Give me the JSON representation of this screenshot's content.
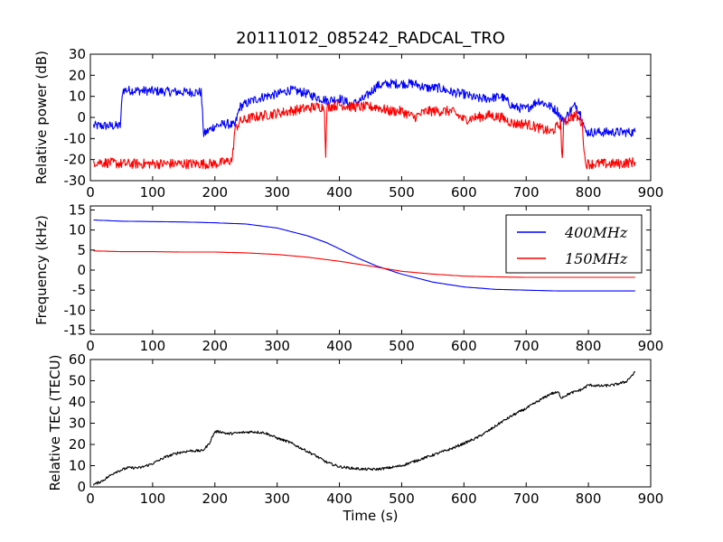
{
  "figure": {
    "title": "20111012_085242_RADCAL_TRO",
    "xlabel": "Time (s)"
  },
  "chart_data": [
    {
      "type": "line",
      "title": "20111012_085242_RADCAL_TRO",
      "xlabel": "",
      "ylabel": "Relative power (dB)",
      "xlim": [
        0,
        900
      ],
      "ylim": [
        -30,
        30
      ],
      "xticks": [
        0,
        100,
        200,
        300,
        400,
        500,
        600,
        700,
        800,
        900
      ],
      "yticks": [
        -30,
        -20,
        -10,
        0,
        10,
        20,
        30
      ],
      "grid": false,
      "legend": "none",
      "series": [
        {
          "color": "#0000ff",
          "noise": 2.2,
          "x": [
            5,
            48,
            52,
            100,
            150,
            178,
            182,
            200,
            220,
            232,
            240,
            260,
            280,
            300,
            320,
            340,
            360,
            380,
            400,
            420,
            440,
            460,
            480,
            500,
            520,
            540,
            560,
            580,
            600,
            620,
            640,
            660,
            680,
            700,
            720,
            740,
            750,
            760,
            770,
            780,
            790,
            795,
            800,
            820,
            850,
            875
          ],
          "y": [
            -4,
            -4,
            13,
            12.5,
            12,
            12,
            -8,
            -4,
            -3,
            -4,
            5,
            8,
            10,
            11,
            13,
            12,
            10,
            8,
            9,
            6,
            9,
            15,
            16,
            16,
            16,
            14,
            14,
            12,
            11,
            9,
            9,
            10,
            5,
            4,
            8,
            5,
            3,
            -2,
            3,
            6,
            0,
            -7,
            -7,
            -7,
            -7,
            -7
          ]
        },
        {
          "color": "#ff0000",
          "noise": 2.4,
          "x": [
            5,
            50,
            100,
            150,
            200,
            220,
            228,
            232,
            240,
            260,
            280,
            300,
            320,
            340,
            360,
            376,
            378,
            380,
            400,
            420,
            440,
            460,
            480,
            500,
            520,
            540,
            560,
            580,
            600,
            620,
            640,
            660,
            680,
            700,
            720,
            740,
            755,
            758,
            760,
            770,
            780,
            790,
            795,
            800,
            820,
            850,
            875
          ],
          "y": [
            -21,
            -22,
            -22,
            -22,
            -22,
            -21,
            -20,
            -6,
            -2,
            0,
            1,
            2,
            3,
            4,
            5,
            5,
            -20,
            5,
            6,
            5,
            5,
            5,
            3,
            3,
            0,
            3,
            3,
            3,
            -1,
            0,
            1,
            0,
            -3,
            -3,
            -5,
            -7,
            -3,
            -20,
            -3,
            0,
            1,
            -3,
            -22,
            -22,
            -22,
            -22,
            -21
          ]
        }
      ]
    },
    {
      "type": "line",
      "ylabel": "Frequency (kHz)",
      "xlim": [
        0,
        900
      ],
      "ylim": [
        -16,
        16
      ],
      "xticks": [
        0,
        100,
        200,
        300,
        400,
        500,
        600,
        700,
        800,
        900
      ],
      "yticks": [
        -15,
        -10,
        -5,
        0,
        5,
        10,
        15
      ],
      "grid": false,
      "legend": "top-right",
      "series": [
        {
          "name": "400MHz",
          "color": "#0000ff",
          "x": [
            5,
            50,
            100,
            150,
            200,
            250,
            300,
            350,
            380,
            400,
            430,
            460,
            500,
            550,
            600,
            650,
            700,
            750,
            800,
            850,
            875
          ],
          "y": [
            12.5,
            12.2,
            12.1,
            12.0,
            11.8,
            11.5,
            10.5,
            8.5,
            6.8,
            5.3,
            3,
            1,
            -1,
            -3,
            -4.2,
            -4.8,
            -5,
            -5.2,
            -5.2,
            -5.2,
            -5.2
          ]
        },
        {
          "name": "150MHz",
          "color": "#ff0000",
          "x": [
            5,
            50,
            100,
            150,
            200,
            250,
            300,
            350,
            400,
            450,
            500,
            550,
            600,
            650,
            700,
            750,
            800,
            850,
            875
          ],
          "y": [
            4.8,
            4.6,
            4.6,
            4.5,
            4.5,
            4.3,
            3.9,
            3.2,
            2.2,
            1.0,
            -0.3,
            -1.0,
            -1.5,
            -1.7,
            -1.8,
            -1.8,
            -1.8,
            -1.8,
            -1.8
          ]
        }
      ]
    },
    {
      "type": "line",
      "ylabel": "Relative TEC (TECU)",
      "xlabel": "Time (s)",
      "xlim": [
        0,
        900
      ],
      "ylim": [
        0,
        60
      ],
      "xticks": [
        0,
        100,
        200,
        300,
        400,
        500,
        600,
        700,
        800,
        900
      ],
      "yticks": [
        0,
        10,
        20,
        30,
        40,
        50,
        60
      ],
      "grid": false,
      "legend": "none",
      "series": [
        {
          "color": "#000000",
          "noise": 0.6,
          "x": [
            5,
            20,
            40,
            60,
            80,
            100,
            120,
            140,
            160,
            180,
            190,
            200,
            210,
            220,
            240,
            260,
            280,
            300,
            320,
            340,
            360,
            380,
            400,
            420,
            440,
            460,
            480,
            500,
            520,
            540,
            560,
            580,
            600,
            620,
            640,
            660,
            680,
            700,
            720,
            740,
            752,
            756,
            770,
            790,
            800,
            820,
            840,
            860,
            875
          ],
          "y": [
            1,
            3,
            7,
            9,
            9,
            11,
            14,
            16,
            17,
            17,
            20,
            26,
            26,
            25,
            25.5,
            26,
            25.5,
            23,
            21,
            18,
            15,
            11.5,
            9.5,
            8.8,
            8.3,
            8.3,
            9,
            10,
            12,
            14,
            16,
            18,
            20.5,
            23,
            26.5,
            30.5,
            34,
            37,
            40.5,
            44,
            44.5,
            42,
            44,
            46,
            48,
            47.5,
            48,
            49.5,
            54
          ]
        }
      ]
    }
  ]
}
